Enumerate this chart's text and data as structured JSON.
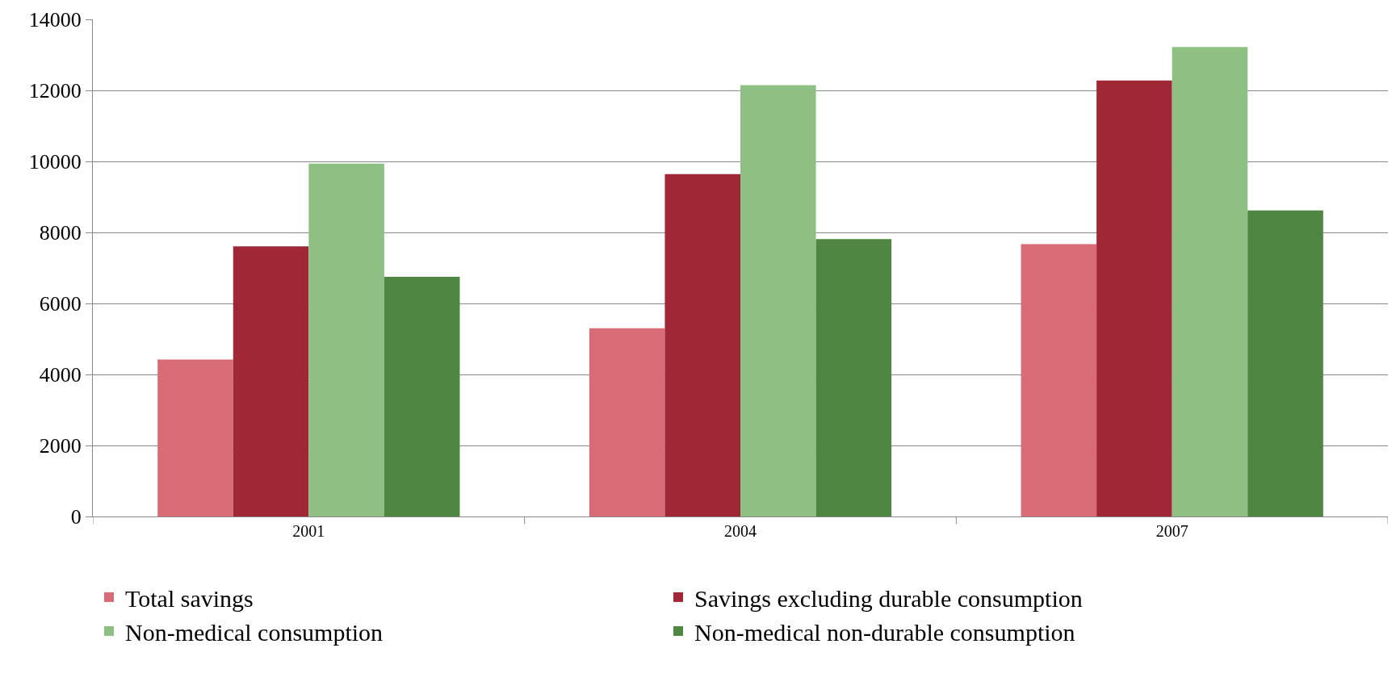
{
  "chart_data": {
    "type": "bar",
    "categories": [
      "2001",
      "2004",
      "2007"
    ],
    "series": [
      {
        "name": "Total savings",
        "color": "#d86b75",
        "values": [
          4420,
          5300,
          7670
        ]
      },
      {
        "name": "Savings excluding durable consumption",
        "color": "#a02836",
        "values": [
          7610,
          9640,
          12280
        ]
      },
      {
        "name": "Non-medical consumption",
        "color": "#8fc083",
        "values": [
          9940,
          12150,
          13220
        ]
      },
      {
        "name": "Non-medical non-durable consumption",
        "color": "#4f8642",
        "values": [
          6750,
          7810,
          8620
        ]
      }
    ],
    "ylim": [
      0,
      14000
    ],
    "yticks": [
      0,
      2000,
      4000,
      6000,
      8000,
      10000,
      12000,
      14000
    ],
    "grid": "y",
    "legend": "bottom"
  }
}
